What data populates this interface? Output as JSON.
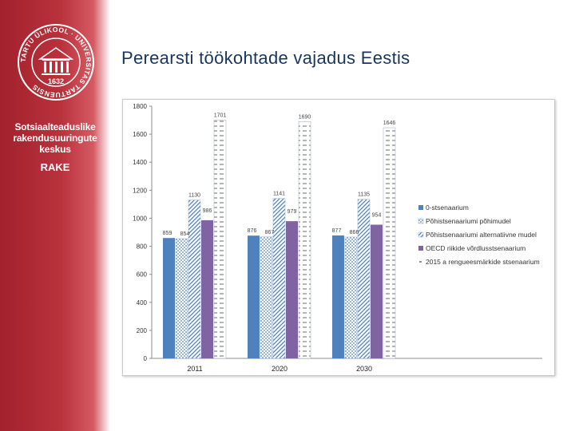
{
  "slide": {
    "title": "Perearsti töökohtade vajadus Eestis",
    "org_name_lines": [
      "Sotsiaalteaduslike",
      "rakendusuuringute",
      "keskus"
    ],
    "org_abbr": "RAKE",
    "seal_text": "TARTU ÜLIKOOL · UNIVERSITAS TARTUENSIS",
    "seal_year": "1632"
  },
  "colors": {
    "panel": "#a2212d",
    "title": "#17365d",
    "series": [
      "#4f81bd",
      "#4f81bd",
      "#4f81bd",
      "#8064a2",
      "#c0c0c0"
    ]
  },
  "chart_data": {
    "type": "bar",
    "categories": [
      "2011",
      "2020",
      "2030"
    ],
    "ylim": [
      0,
      1800
    ],
    "yticks": [
      0,
      200,
      400,
      600,
      800,
      1000,
      1200,
      1400,
      1600,
      1800
    ],
    "grid": false,
    "legend_position": "right",
    "series": [
      {
        "name": "0-stsenaarium",
        "values": [
          859,
          876,
          877
        ],
        "labels": [
          "859",
          "876",
          "877"
        ],
        "pattern": "solid"
      },
      {
        "name": "Põhistsenaariumi põhimudel",
        "values": [
          854,
          867,
          866
        ],
        "labels": [
          "854",
          "867",
          "866"
        ],
        "pattern": "dots"
      },
      {
        "name": "Põhistsenaariumi alternatiivne mudel",
        "values": [
          1130,
          1141,
          1135
        ],
        "labels": [
          "1130",
          "1141",
          "1135"
        ],
        "pattern": "diagonal"
      },
      {
        "name": "OECD riikide võrdlusstsenaarium",
        "values": [
          986,
          979,
          954
        ],
        "labels": [
          "986",
          "979",
          "954"
        ],
        "pattern": "solid"
      },
      {
        "name": "2015 a rengueesmärkide stsenaarium",
        "values": [
          1701,
          1690,
          1646
        ],
        "labels": [
          "1701",
          "1690",
          "1646"
        ],
        "pattern": "dashes"
      }
    ]
  }
}
